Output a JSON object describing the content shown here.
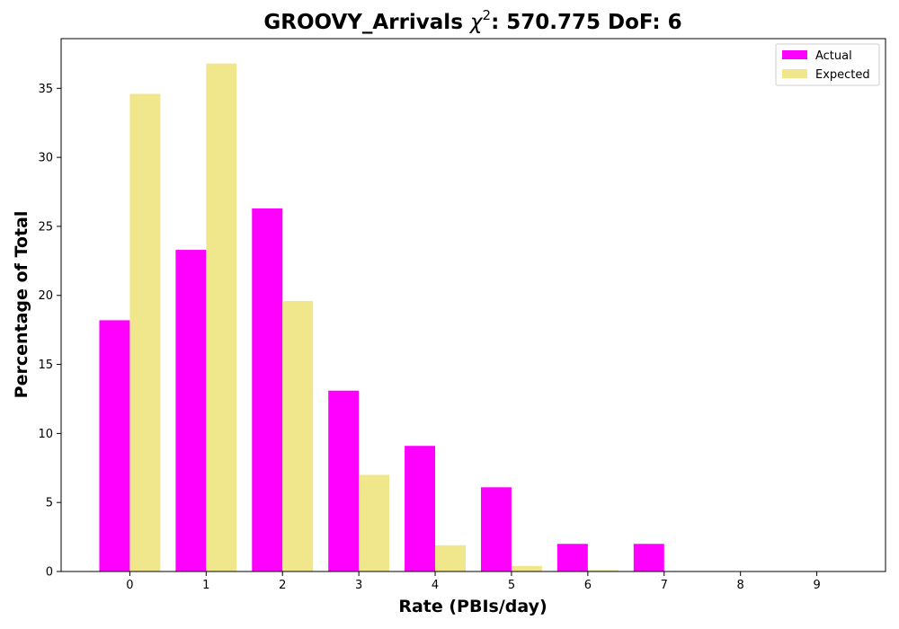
{
  "chart_data": {
    "type": "bar",
    "title": "GROOVY_Arrivals χ²: 570.775 DoF: 6",
    "title_parts": {
      "prefix": "GROOVY_Arrivals ",
      "chi": "χ",
      "sup": "2",
      "suffix": ": 570.775 DoF: 6"
    },
    "xlabel": "Rate (PBIs/day)",
    "ylabel": "Percentage of Total",
    "categories": [
      "0",
      "1",
      "2",
      "3",
      "4",
      "5",
      "6",
      "7",
      "8",
      "9"
    ],
    "xlim": [
      -0.9,
      9.9
    ],
    "ylim": [
      0,
      38.6
    ],
    "yticks": [
      0,
      5,
      10,
      15,
      20,
      25,
      30,
      35
    ],
    "grid": false,
    "legend_position": "top-right",
    "series": [
      {
        "name": "Actual",
        "color": "#ff00ff",
        "offset": -0.2,
        "values": [
          18.2,
          23.3,
          26.3,
          13.1,
          9.1,
          6.1,
          2.0,
          2.0,
          0,
          0
        ]
      },
      {
        "name": "Expected",
        "color": "#f0e68c",
        "offset": 0.2,
        "values": [
          34.6,
          36.8,
          19.6,
          7.0,
          1.9,
          0.4,
          0.1,
          0,
          0,
          0
        ]
      }
    ],
    "bar_width": 0.4
  }
}
